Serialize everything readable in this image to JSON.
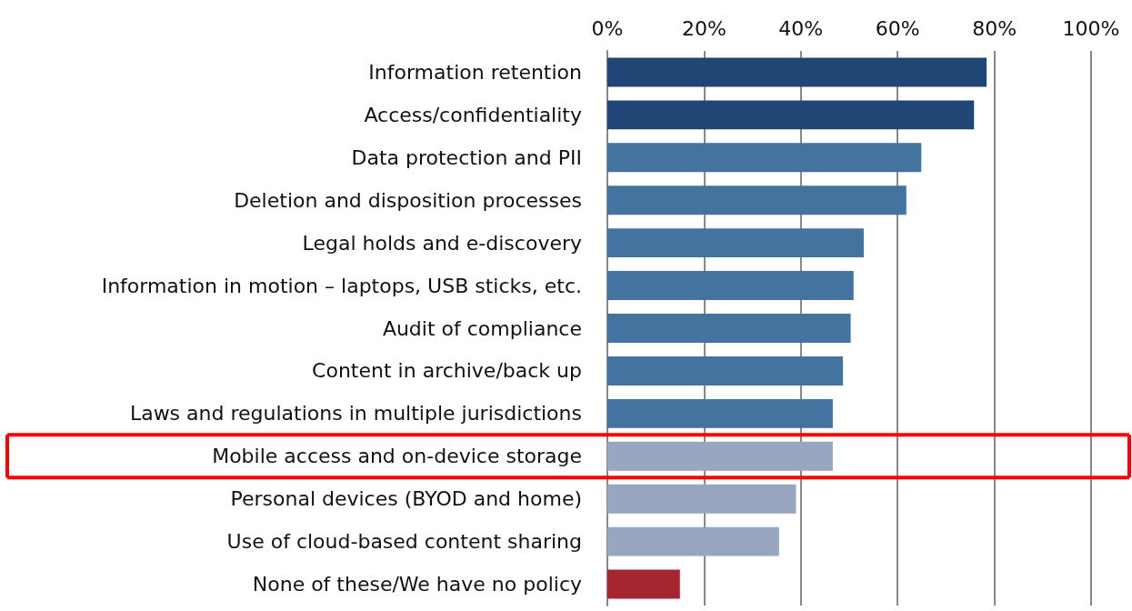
{
  "chart_data": {
    "type": "bar",
    "orientation": "horizontal",
    "categories": [
      "Information retention",
      "Access/confidentiality",
      "Data protection and PII",
      "Deletion and disposition processes",
      "Legal holds and e-discovery",
      "Information in motion – laptops, USB sticks, etc.",
      "Audit of compliance",
      "Content in archive/back up",
      "Laws and regulations in multiple jurisdictions",
      "Mobile access and on-device storage",
      "Personal devices (BYOD and home)",
      "Use of cloud-based content sharing",
      "None of these/We have no policy"
    ],
    "values": [
      78.4,
      75.8,
      64.9,
      61.8,
      53.0,
      50.9,
      50.3,
      48.7,
      46.6,
      46.6,
      39.0,
      35.5,
      15.0
    ],
    "colors": [
      "#1f4674",
      "#1f4674",
      "#44739f",
      "#44739f",
      "#44739f",
      "#44739f",
      "#44739f",
      "#44739f",
      "#44739f",
      "#97a7bf",
      "#97a7bf",
      "#97a7bf",
      "#a52630"
    ],
    "xlim": [
      0,
      100
    ],
    "xticks": [
      {
        "value": 0,
        "label": "0%"
      },
      {
        "value": 20,
        "label": "20%"
      },
      {
        "value": 40,
        "label": "40%"
      },
      {
        "value": 60,
        "label": "60%"
      },
      {
        "value": 80,
        "label": "80%"
      },
      {
        "value": 100,
        "label": "100%"
      }
    ],
    "grid": "x"
  }
}
